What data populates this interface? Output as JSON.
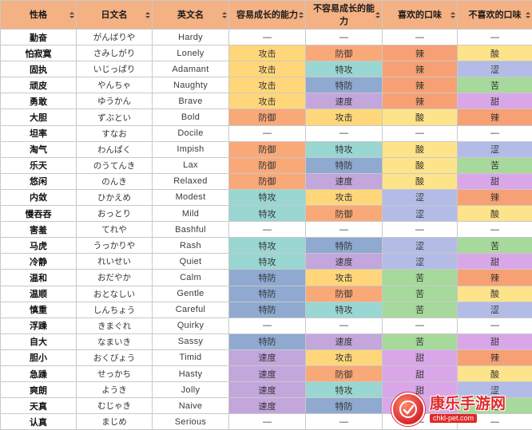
{
  "columns": [
    {
      "key": "xing_ge",
      "label": "性格"
    },
    {
      "key": "ri_wen",
      "label": "日文名"
    },
    {
      "key": "ying_wen",
      "label": "英文名"
    },
    {
      "key": "up",
      "label": "容易成长的能力"
    },
    {
      "key": "down",
      "label": "不容易成长的能力",
      "line1": "不容易成长的能",
      "line2": "力"
    },
    {
      "key": "like",
      "label": "喜欢的口味"
    },
    {
      "key": "dislike",
      "label": "不喜欢的口味"
    }
  ],
  "colors": {
    "header": "#f4b183",
    "攻击": "#ffd77a",
    "防御": "#f9a878",
    "特攻": "#9ad6d2",
    "特防": "#8fa9d0",
    "速度": "#c3a6dc",
    "辣": "#f6a073",
    "酸": "#fde38a",
    "涩": "#b3bce6",
    "苦": "#a6d99b",
    "甜": "#d9a7e8"
  },
  "rows": [
    {
      "xing_ge": "勤奋",
      "ri_wen": "がんばりや",
      "ying_wen": "Hardy",
      "up": "—",
      "down": "—",
      "like": "—",
      "dislike": "—"
    },
    {
      "xing_ge": "怕寂寞",
      "ri_wen": "さみしがり",
      "ying_wen": "Lonely",
      "up": "攻击",
      "down": "防御",
      "like": "辣",
      "dislike": "酸"
    },
    {
      "xing_ge": "固执",
      "ri_wen": "いじっぱり",
      "ying_wen": "Adamant",
      "up": "攻击",
      "down": "特攻",
      "like": "辣",
      "dislike": "涩"
    },
    {
      "xing_ge": "顽皮",
      "ri_wen": "やんちゃ",
      "ying_wen": "Naughty",
      "up": "攻击",
      "down": "特防",
      "like": "辣",
      "dislike": "苦"
    },
    {
      "xing_ge": "勇敢",
      "ri_wen": "ゆうかん",
      "ying_wen": "Brave",
      "up": "攻击",
      "down": "速度",
      "like": "辣",
      "dislike": "甜"
    },
    {
      "xing_ge": "大胆",
      "ri_wen": "ずぶとい",
      "ying_wen": "Bold",
      "up": "防御",
      "down": "攻击",
      "like": "酸",
      "dislike": "辣"
    },
    {
      "xing_ge": "坦率",
      "ri_wen": "すなお",
      "ying_wen": "Docile",
      "up": "—",
      "down": "—",
      "like": "—",
      "dislike": "—"
    },
    {
      "xing_ge": "淘气",
      "ri_wen": "わんぱく",
      "ying_wen": "Impish",
      "up": "防御",
      "down": "特攻",
      "like": "酸",
      "dislike": "涩"
    },
    {
      "xing_ge": "乐天",
      "ri_wen": "のうてんき",
      "ying_wen": "Lax",
      "up": "防御",
      "down": "特防",
      "like": "酸",
      "dislike": "苦"
    },
    {
      "xing_ge": "悠闲",
      "ri_wen": "のんき",
      "ying_wen": "Relaxed",
      "up": "防御",
      "down": "速度",
      "like": "酸",
      "dislike": "甜"
    },
    {
      "xing_ge": "内敛",
      "ri_wen": "ひかえめ",
      "ying_wen": "Modest",
      "up": "特攻",
      "down": "攻击",
      "like": "涩",
      "dislike": "辣"
    },
    {
      "xing_ge": "慢吞吞",
      "ri_wen": "おっとり",
      "ying_wen": "Mild",
      "up": "特攻",
      "down": "防御",
      "like": "涩",
      "dislike": "酸"
    },
    {
      "xing_ge": "害羞",
      "ri_wen": "てれや",
      "ying_wen": "Bashful",
      "up": "—",
      "down": "—",
      "like": "—",
      "dislike": "—"
    },
    {
      "xing_ge": "马虎",
      "ri_wen": "うっかりや",
      "ying_wen": "Rash",
      "up": "特攻",
      "down": "特防",
      "like": "涩",
      "dislike": "苦"
    },
    {
      "xing_ge": "冷静",
      "ri_wen": "れいせい",
      "ying_wen": "Quiet",
      "up": "特攻",
      "down": "速度",
      "like": "涩",
      "dislike": "甜"
    },
    {
      "xing_ge": "温和",
      "ri_wen": "おだやか",
      "ying_wen": "Calm",
      "up": "特防",
      "down": "攻击",
      "like": "苦",
      "dislike": "辣"
    },
    {
      "xing_ge": "温顺",
      "ri_wen": "おとなしい",
      "ying_wen": "Gentle",
      "up": "特防",
      "down": "防御",
      "like": "苦",
      "dislike": "酸"
    },
    {
      "xing_ge": "慎重",
      "ri_wen": "しんちょう",
      "ying_wen": "Careful",
      "up": "特防",
      "down": "特攻",
      "like": "苦",
      "dislike": "涩"
    },
    {
      "xing_ge": "浮躁",
      "ri_wen": "きまぐれ",
      "ying_wen": "Quirky",
      "up": "—",
      "down": "—",
      "like": "—",
      "dislike": "—"
    },
    {
      "xing_ge": "自大",
      "ri_wen": "なまいき",
      "ying_wen": "Sassy",
      "up": "特防",
      "down": "速度",
      "like": "苦",
      "dislike": "甜"
    },
    {
      "xing_ge": "胆小",
      "ri_wen": "おくびょう",
      "ying_wen": "Timid",
      "up": "速度",
      "down": "攻击",
      "like": "甜",
      "dislike": "辣"
    },
    {
      "xing_ge": "急躁",
      "ri_wen": "せっかち",
      "ying_wen": "Hasty",
      "up": "速度",
      "down": "防御",
      "like": "甜",
      "dislike": "酸"
    },
    {
      "xing_ge": "爽朗",
      "ri_wen": "ようき",
      "ying_wen": "Jolly",
      "up": "速度",
      "down": "特攻",
      "like": "甜",
      "dislike": "涩"
    },
    {
      "xing_ge": "天真",
      "ri_wen": "むじゃき",
      "ying_wen": "Naive",
      "up": "速度",
      "down": "特防",
      "like": "甜",
      "dislike": "苦"
    },
    {
      "xing_ge": "认真",
      "ri_wen": "まじめ",
      "ying_wen": "Serious",
      "up": "—",
      "down": "—",
      "like": "—",
      "dislike": "—"
    }
  ],
  "watermark": {
    "title": "康乐手游网",
    "subtitle": "chkl-pet.com"
  }
}
